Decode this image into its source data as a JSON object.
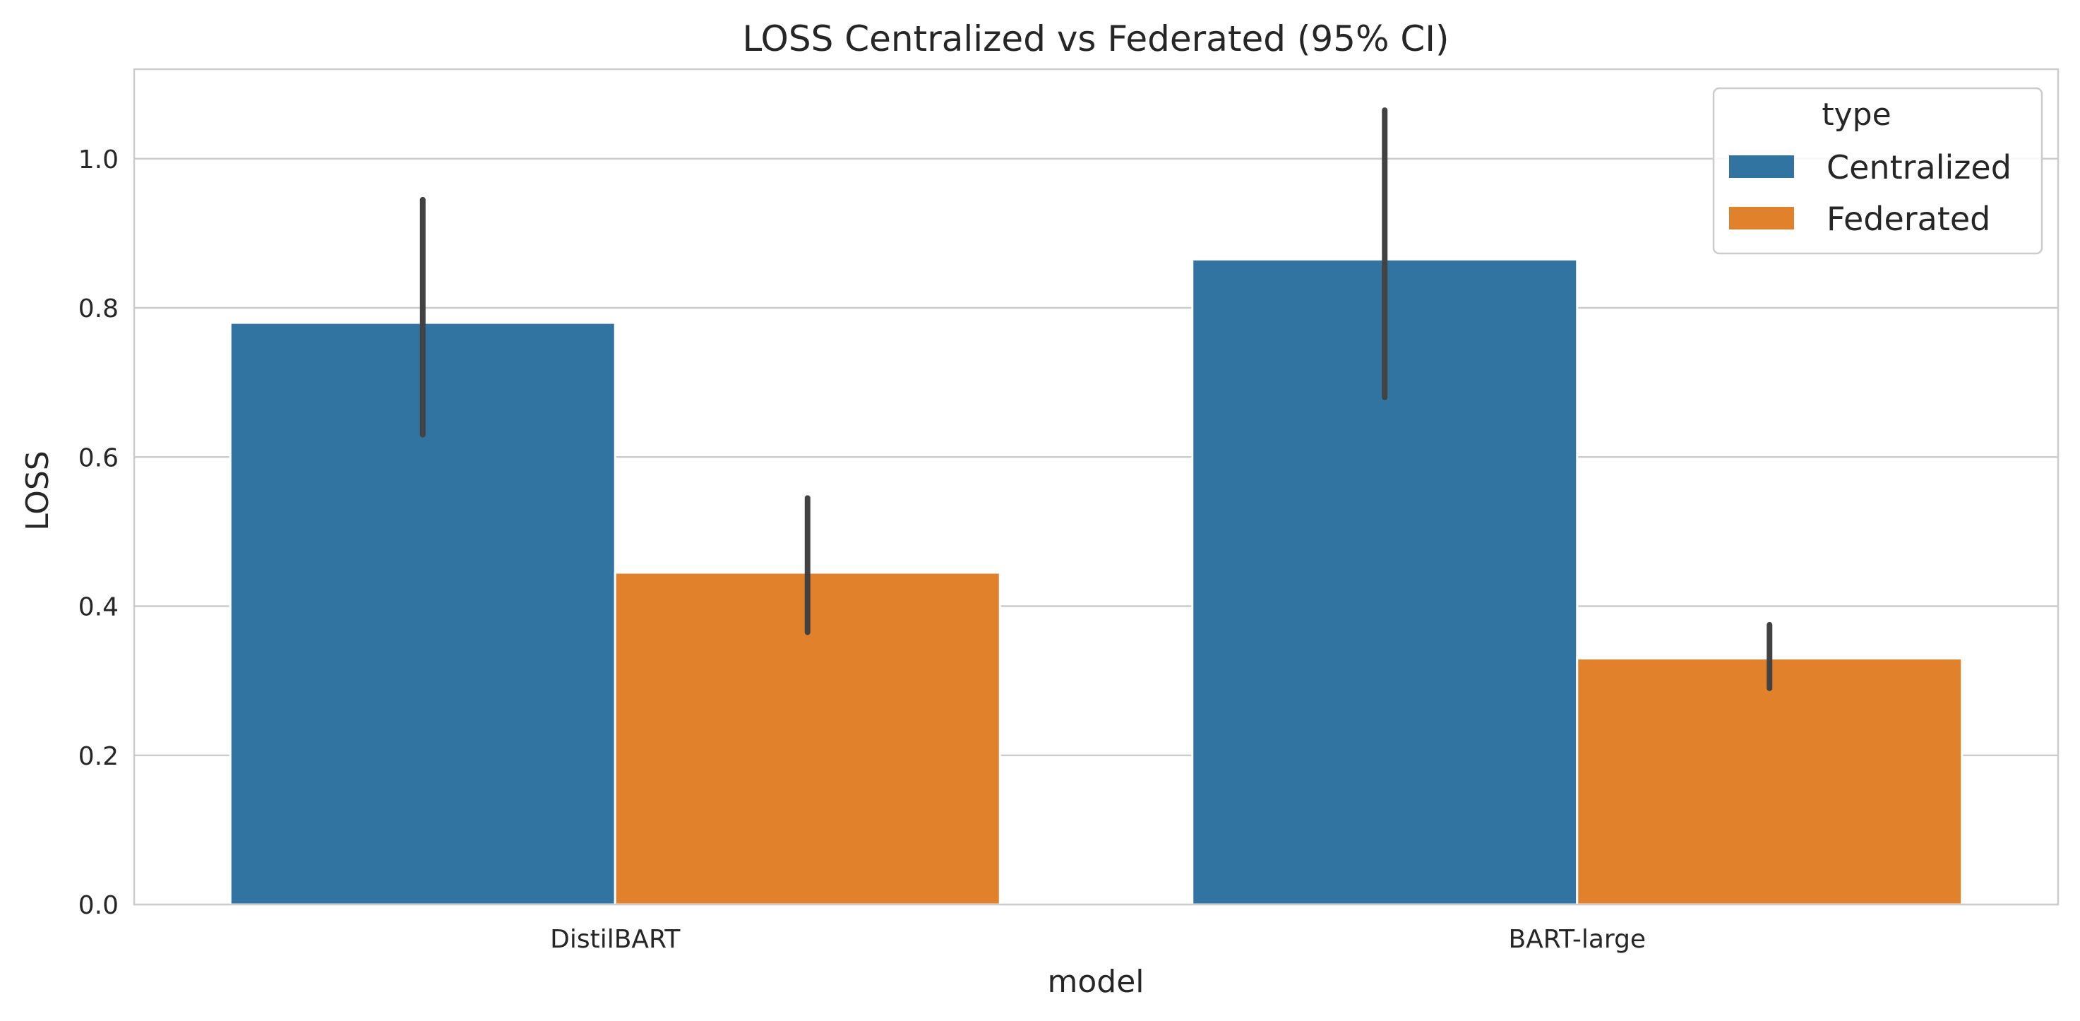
{
  "chart_data": {
    "type": "bar",
    "title": "LOSS Centralized vs Federated (95% CI)",
    "xlabel": "model",
    "ylabel": "LOSS",
    "categories": [
      "DistilBART",
      "BART-large"
    ],
    "ylim": [
      0,
      1.12
    ],
    "yticks": [
      0.0,
      0.2,
      0.4,
      0.6,
      0.8,
      1.0
    ],
    "ytick_labels": [
      "0.0",
      "0.2",
      "0.4",
      "0.6",
      "0.8",
      "1.0"
    ],
    "grid": true,
    "legend": {
      "title": "type",
      "position": "top-right"
    },
    "series": [
      {
        "name": "Centralized",
        "color": "#3274a1",
        "values": [
          0.78,
          0.865
        ],
        "ci_low": [
          0.63,
          0.68
        ],
        "ci_high": [
          0.945,
          1.065
        ]
      },
      {
        "name": "Federated",
        "color": "#e1812c",
        "values": [
          0.445,
          0.33
        ],
        "ci_low": [
          0.365,
          0.29
        ],
        "ci_high": [
          0.545,
          0.375
        ]
      }
    ]
  }
}
